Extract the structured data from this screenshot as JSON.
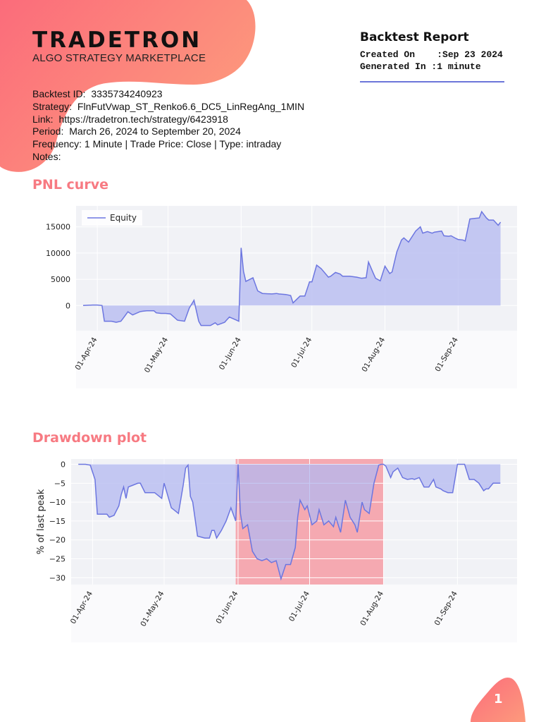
{
  "logo": {
    "title": "TRADETRON",
    "subtitle": "ALGO STRATEGY MARKETPLACE"
  },
  "report": {
    "title": "Backtest Report",
    "created_label": "Created On",
    "created_value": "Sep 23 2024",
    "generated_label": "Generated In",
    "generated_value": "1 minute"
  },
  "info": {
    "backtest_id_label": "Backtest ID:",
    "backtest_id": "3335734240923",
    "strategy_label": "Strategy:",
    "strategy": "FlnFutVwap_ST_Renko6.6_DC5_LinRegAng_1MIN",
    "link_label": "Link:",
    "link": "https://tradetron.tech/strategy/6423918",
    "period_label": "Period:",
    "period": "March 26, 2024 to September 20, 2024",
    "frequency_line": "Frequency: 1 Minute | Trade Price: Close | Type: intraday",
    "notes_label": "Notes:"
  },
  "sections": {
    "pnl_title": "PNL curve",
    "drawdown_title": "Drawdown plot"
  },
  "page_number": "1",
  "colors": {
    "accent": "#f77a82",
    "line": "#6c76e0",
    "fill": "#b3b8f0",
    "highlight": "#f5909a",
    "plot_bg": "#f1f2f6"
  },
  "chart_data": [
    {
      "type": "area",
      "title": "",
      "legend": [
        "Equity"
      ],
      "legend_position": "top-left",
      "x_tick_labels": [
        "01-Apr-24",
        "01-May-24",
        "01-Jun-24",
        "01-Jul-24",
        "01-Aug-24",
        "01-Sep-24"
      ],
      "x_ticks_days": [
        6,
        36,
        67,
        97,
        128,
        159
      ],
      "y_ticks": [
        0,
        5000,
        10000,
        15000
      ],
      "ylim": [
        -4800,
        19000
      ],
      "xlim": [
        -3,
        184
      ],
      "grid": true,
      "series": [
        {
          "name": "Equity",
          "x": [
            0,
            4,
            6,
            8,
            9,
            12,
            14,
            16,
            17,
            19,
            21,
            24,
            25,
            27,
            30,
            31,
            33,
            35,
            37,
            40,
            43,
            45,
            47,
            49,
            50,
            52,
            54,
            56,
            57,
            60,
            61,
            62,
            64,
            66,
            67,
            68,
            69,
            72,
            74,
            76,
            80,
            82,
            83,
            86,
            88,
            89,
            92,
            94,
            96,
            97,
            99,
            101,
            104,
            105,
            107,
            109,
            110,
            113,
            116,
            118,
            120,
            121,
            123,
            124,
            126,
            128,
            130,
            131,
            133,
            135,
            136,
            138,
            141,
            143,
            144,
            146,
            148,
            149,
            152,
            153,
            155,
            156,
            158,
            159,
            161,
            162,
            164,
            166,
            168,
            169,
            170,
            171,
            172,
            174,
            176,
            177
          ],
          "y": [
            0,
            100,
            100,
            0,
            -3000,
            -3000,
            -3200,
            -3000,
            -2400,
            -1200,
            -1800,
            -1200,
            -1100,
            -1000,
            -1000,
            -1400,
            -1500,
            -1500,
            -1600,
            -2800,
            -3000,
            -500,
            1000,
            -3000,
            -3800,
            -3800,
            -3800,
            -3300,
            -3700,
            -3200,
            -2700,
            -2200,
            -2600,
            -3000,
            11000,
            6500,
            4600,
            5300,
            2800,
            2300,
            2200,
            2300,
            2200,
            2100,
            1900,
            500,
            1800,
            1800,
            4500,
            4500,
            7700,
            7000,
            5400,
            5600,
            6300,
            6000,
            5600,
            5600,
            5400,
            5200,
            5300,
            8300,
            6200,
            5200,
            4700,
            7500,
            6100,
            6400,
            10200,
            12500,
            12900,
            12100,
            14200,
            15000,
            13800,
            14100,
            13800,
            14000,
            14200,
            13300,
            13200,
            13300,
            12800,
            12600,
            12500,
            12300,
            16500,
            16600,
            16700,
            17900,
            17300,
            16700,
            16300,
            16300,
            15300,
            15900
          ]
        }
      ]
    },
    {
      "type": "area",
      "title": "",
      "ylabel": "% of last peak",
      "x_tick_labels": [
        "01-Apr-24",
        "01-May-24",
        "01-Jun-24",
        "01-Jul-24",
        "01-Aug-24",
        "01-Sep-24"
      ],
      "x_ticks_days": [
        6,
        36,
        67,
        97,
        128,
        159
      ],
      "y_ticks": [
        0,
        -5,
        -10,
        -15,
        -20,
        -25,
        -30
      ],
      "y_tick_labels": [
        "0",
        "−5",
        "−10",
        "−15",
        "−20",
        "−25",
        "−30"
      ],
      "ylim": [
        -31.8,
        1.4
      ],
      "xlim": [
        -3,
        184
      ],
      "grid": true,
      "highlight_range_days": [
        66,
        128
      ],
      "series": [
        {
          "name": "",
          "x": [
            0,
            3,
            5,
            7,
            8,
            12,
            13,
            15,
            17,
            18,
            19,
            20,
            21,
            23,
            25,
            26,
            28,
            30,
            32,
            35,
            36,
            39,
            40,
            42,
            44,
            45,
            46,
            47,
            48,
            50,
            53,
            54,
            55,
            56,
            57,
            58,
            60,
            62,
            64,
            66,
            67,
            68,
            69,
            71,
            73,
            75,
            77,
            79,
            81,
            83,
            85,
            87,
            89,
            91,
            92,
            93,
            95,
            96,
            98,
            100,
            101,
            103,
            105,
            107,
            108,
            110,
            112,
            114,
            116,
            117,
            119,
            120,
            122,
            124,
            126,
            127,
            128,
            129,
            131,
            132,
            134,
            136,
            138,
            140,
            141,
            143,
            145,
            147,
            149,
            150,
            152,
            153,
            155,
            157,
            159,
            161,
            162,
            164,
            166,
            168,
            170,
            171,
            172,
            174,
            176,
            177
          ],
          "y": [
            0,
            0,
            -0.2,
            -4,
            -13.2,
            -13.2,
            -14,
            -13.5,
            -11,
            -8,
            -6,
            -9,
            -6,
            -5.5,
            -5,
            -5,
            -7.5,
            -7.5,
            -7.5,
            -9,
            -5,
            -11.5,
            -12,
            -13,
            -5.5,
            -1,
            -0.2,
            -8.5,
            -10,
            -19,
            -19.5,
            -19.5,
            -19.5,
            -17.5,
            -17.5,
            -19.5,
            -17.5,
            -15,
            -11.5,
            -15,
            0,
            -13,
            -17,
            -16,
            -23,
            -25,
            -25.5,
            -25,
            -26,
            -25.5,
            -30.3,
            -26.5,
            -26.5,
            -22,
            -14,
            -9.5,
            -12,
            -11,
            -16,
            -15,
            -12,
            -16,
            -15,
            -16.5,
            -14,
            -18,
            -9.5,
            -14,
            -16,
            -18,
            -10,
            -12,
            -13,
            -5,
            -0.2,
            0,
            0,
            -0.5,
            -3.5,
            -2,
            -1,
            -3.5,
            -4,
            -3.8,
            -4,
            -3.5,
            -6,
            -6,
            -4,
            -6,
            -6.5,
            -7,
            -7.5,
            -7.5,
            0,
            0,
            0,
            -4,
            -4,
            -5,
            -7,
            -6.5,
            -6.5,
            -5,
            -5,
            -5
          ]
        }
      ]
    }
  ]
}
